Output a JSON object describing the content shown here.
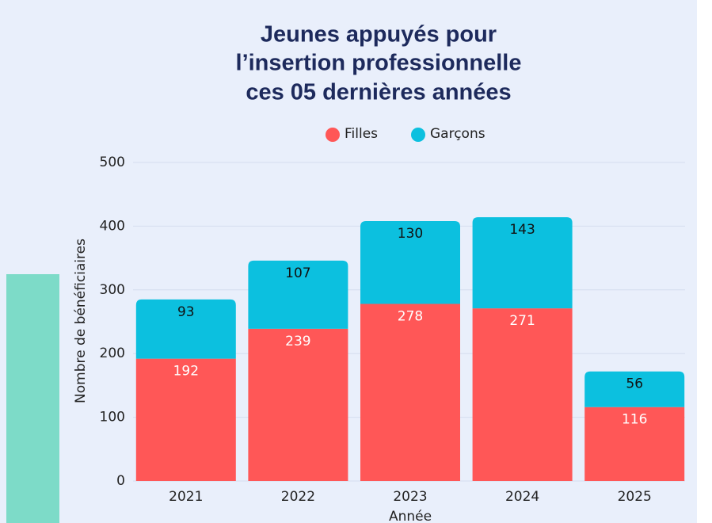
{
  "chart_data": {
    "type": "stacked_bar",
    "title": [
      "Jeunes appuyés pour",
      "l’insertion professionnelle",
      "ces 05 dernières années"
    ],
    "categories": [
      "2021",
      "2022",
      "2023",
      "2024",
      "2025"
    ],
    "series": [
      {
        "name": "Filles",
        "color": "#ff5757",
        "values": [
          192,
          239,
          278,
          271,
          116
        ]
      },
      {
        "name": "Garçons",
        "color": "#0cc0df",
        "values": [
          93,
          107,
          130,
          143,
          56
        ]
      }
    ],
    "xlabel": "Année",
    "ylabel": "Nombre de bénéficiaires",
    "ylim": [
      0,
      500
    ],
    "yticks": [
      0,
      100,
      200,
      300,
      400,
      500
    ],
    "grid": true,
    "legend": "top"
  }
}
